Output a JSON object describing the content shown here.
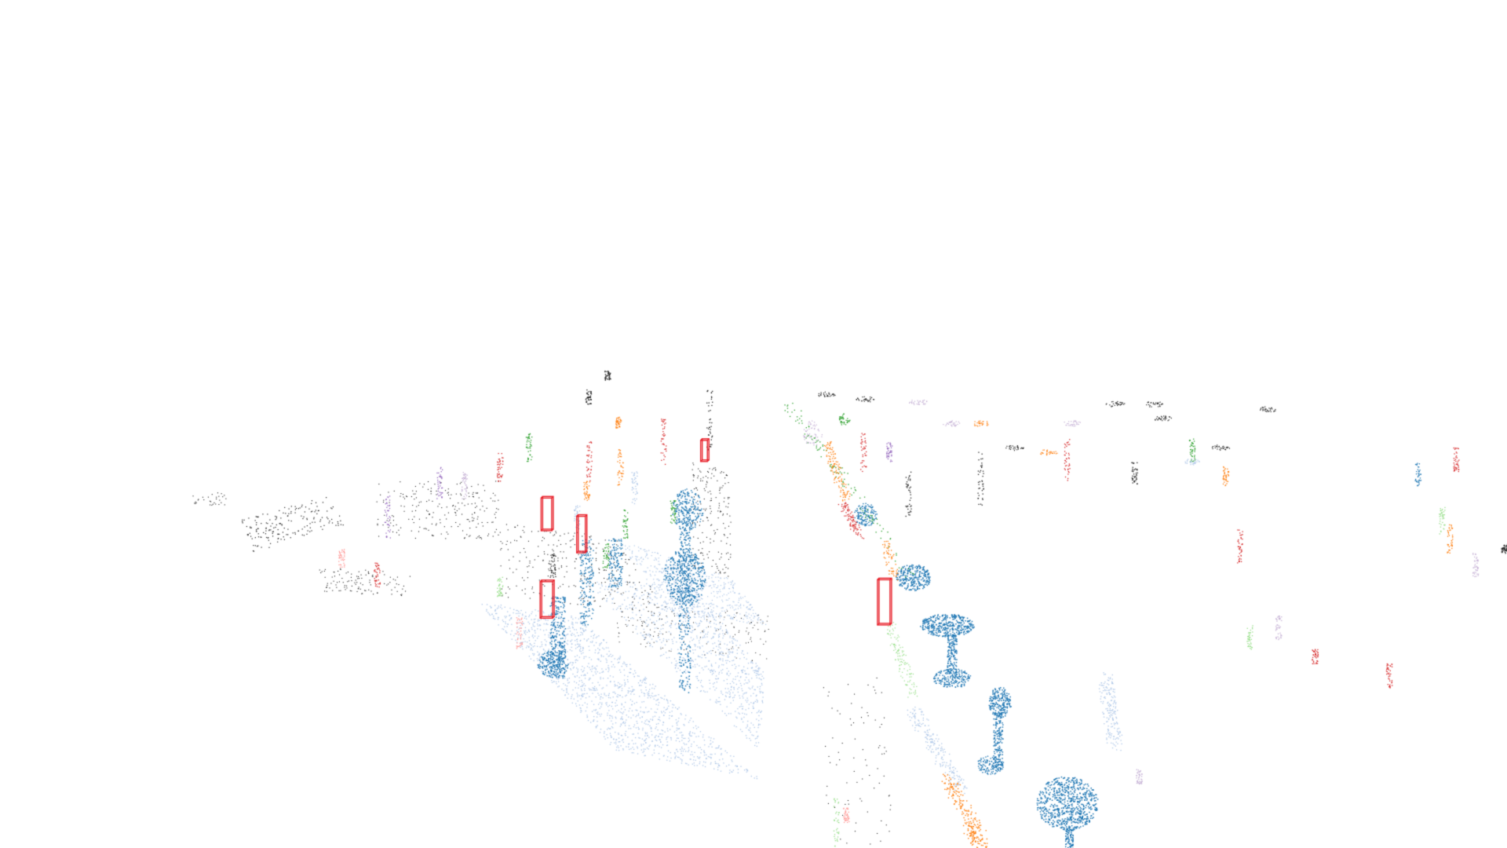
{
  "scene": {
    "background_color": "#ffffff",
    "box_color": "#e8202a",
    "palette": {
      "blue": "#1f77b4",
      "light-blue": "#aec7e8",
      "orange": "#ff7f0e",
      "light-orange": "#ffbb78",
      "green": "#2ca02c",
      "light-green": "#98df8a",
      "red": "#d62728",
      "pink": "#ff9896",
      "purple": "#9467bd",
      "lavender": "#c5b0d5",
      "magenta": "#e377c2",
      "black": "#222222",
      "gray": "#7f7f7f"
    },
    "bounding_box_count": 5
  }
}
